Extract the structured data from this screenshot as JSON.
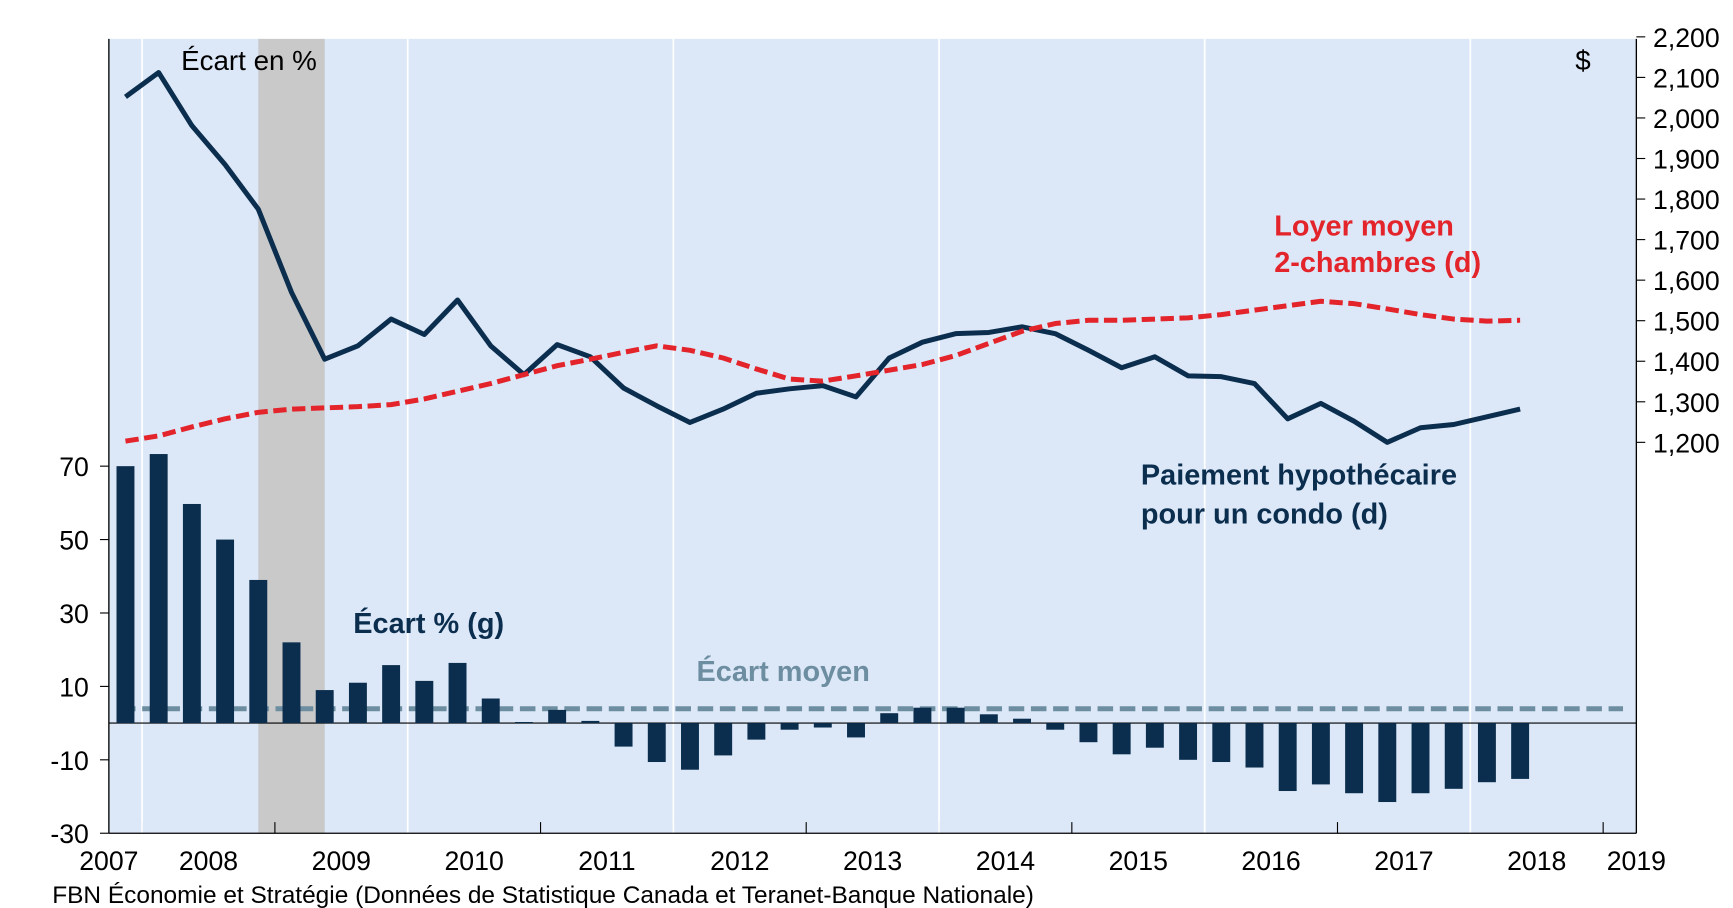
{
  "chart_data": {
    "type": "bar",
    "annotations": [
      "Écart en %",
      "$"
    ],
    "source": "FBN Économie et Stratégie (Données de Statistique Canada et Teranet-Banque Nationale)",
    "x": [
      2007.875,
      2008.125,
      2008.375,
      2008.625,
      2008.875,
      2009.125,
      2009.375,
      2009.625,
      2009.875,
      2010.125,
      2010.375,
      2010.625,
      2010.875,
      2011.125,
      2011.375,
      2011.625,
      2011.875,
      2012.125,
      2012.375,
      2012.625,
      2012.875,
      2013.125,
      2013.375,
      2013.625,
      2013.875,
      2014.125,
      2014.375,
      2014.625,
      2014.875,
      2015.125,
      2015.375,
      2015.625,
      2015.875,
      2016.125,
      2016.375,
      2016.625,
      2016.875,
      2017.125,
      2017.375,
      2017.625,
      2017.875,
      2018.125,
      2018.375
    ],
    "xlim": [
      2007.75,
      2019.25
    ],
    "xticks": [
      2007,
      2008,
      2009,
      2010,
      2011,
      2012,
      2013,
      2014,
      2015,
      2016,
      2017,
      2018,
      2019
    ],
    "ylim": [
      -30,
      186.4
    ],
    "yticks": [
      -30,
      -10,
      10,
      30,
      50,
      70
    ],
    "y2lim": [
      236,
      2195
    ],
    "y2ticks": [
      {
        "value": 1200,
        "label": "1,200"
      },
      {
        "value": 1300,
        "label": "1,300"
      },
      {
        "value": 1400,
        "label": "1,400"
      },
      {
        "value": 1500,
        "label": "1,500"
      },
      {
        "value": 1600,
        "label": "1,600"
      },
      {
        "value": 1700,
        "label": "1,700"
      },
      {
        "value": 1800,
        "label": "1,800"
      },
      {
        "value": 1900,
        "label": "1,900"
      },
      {
        "value": 2000,
        "label": "2,000"
      },
      {
        "value": 2100,
        "label": "2,100"
      },
      {
        "value": 2200,
        "label": "2,200"
      }
    ],
    "shaded_region": [
      2008.875,
      2009.375
    ],
    "grid": true,
    "series": [
      {
        "name": "Écart % (g)",
        "type": "bar",
        "color": "#0b2e4e",
        "values": [
          70,
          73.3,
          59.7,
          50,
          39,
          22,
          9,
          11,
          15.8,
          11.5,
          16.4,
          6.7,
          0.3,
          3.6,
          0.6,
          -6.4,
          -10.6,
          -12.7,
          -8.8,
          -4.5,
          -1.8,
          -1.2,
          -3.9,
          2.7,
          4.2,
          4.2,
          2.4,
          1.2,
          -1.8,
          -5.2,
          -8.5,
          -6.7,
          -10,
          -10.6,
          -12.1,
          -18.5,
          -16.7,
          -19.1,
          -21.5,
          -19.1,
          -17.9,
          -16.1,
          -15.2
        ]
      },
      {
        "name": [
          "Paiement hypothécaire",
          "pour un condo (d)"
        ],
        "type": "line",
        "axis": "y2",
        "color": "#0b2e4e",
        "values": [
          2052,
          2112,
          1981,
          1885,
          1775,
          1570,
          1405,
          1438,
          1504,
          1466,
          1551,
          1438,
          1367,
          1441,
          1411,
          1334,
          1290,
          1249,
          1282,
          1321,
          1332,
          1340,
          1312,
          1408,
          1447,
          1468,
          1471,
          1485,
          1468,
          1427,
          1384,
          1411,
          1364,
          1362,
          1345,
          1258,
          1296,
          1252,
          1200,
          1236,
          1244,
          1263,
          1282
        ]
      },
      {
        "name": [
          "Loyer moyen",
          "2-chambres (d)"
        ],
        "type": "line",
        "axis": "y2",
        "color": "#e3242b",
        "dashed": true,
        "values": [
          1203,
          1216,
          1238,
          1258,
          1274,
          1282,
          1285,
          1288,
          1293,
          1307,
          1326,
          1345,
          1367,
          1389,
          1405,
          1422,
          1438,
          1427,
          1408,
          1381,
          1356,
          1351,
          1364,
          1378,
          1392,
          1414,
          1444,
          1474,
          1493,
          1501,
          1501,
          1504,
          1507,
          1515,
          1526,
          1537,
          1548,
          1542,
          1529,
          1515,
          1504,
          1499,
          1501
        ]
      },
      {
        "name": "Écart moyen",
        "type": "hline",
        "color": "#6d8ea0",
        "dashed": true,
        "value": 3.9
      }
    ]
  }
}
